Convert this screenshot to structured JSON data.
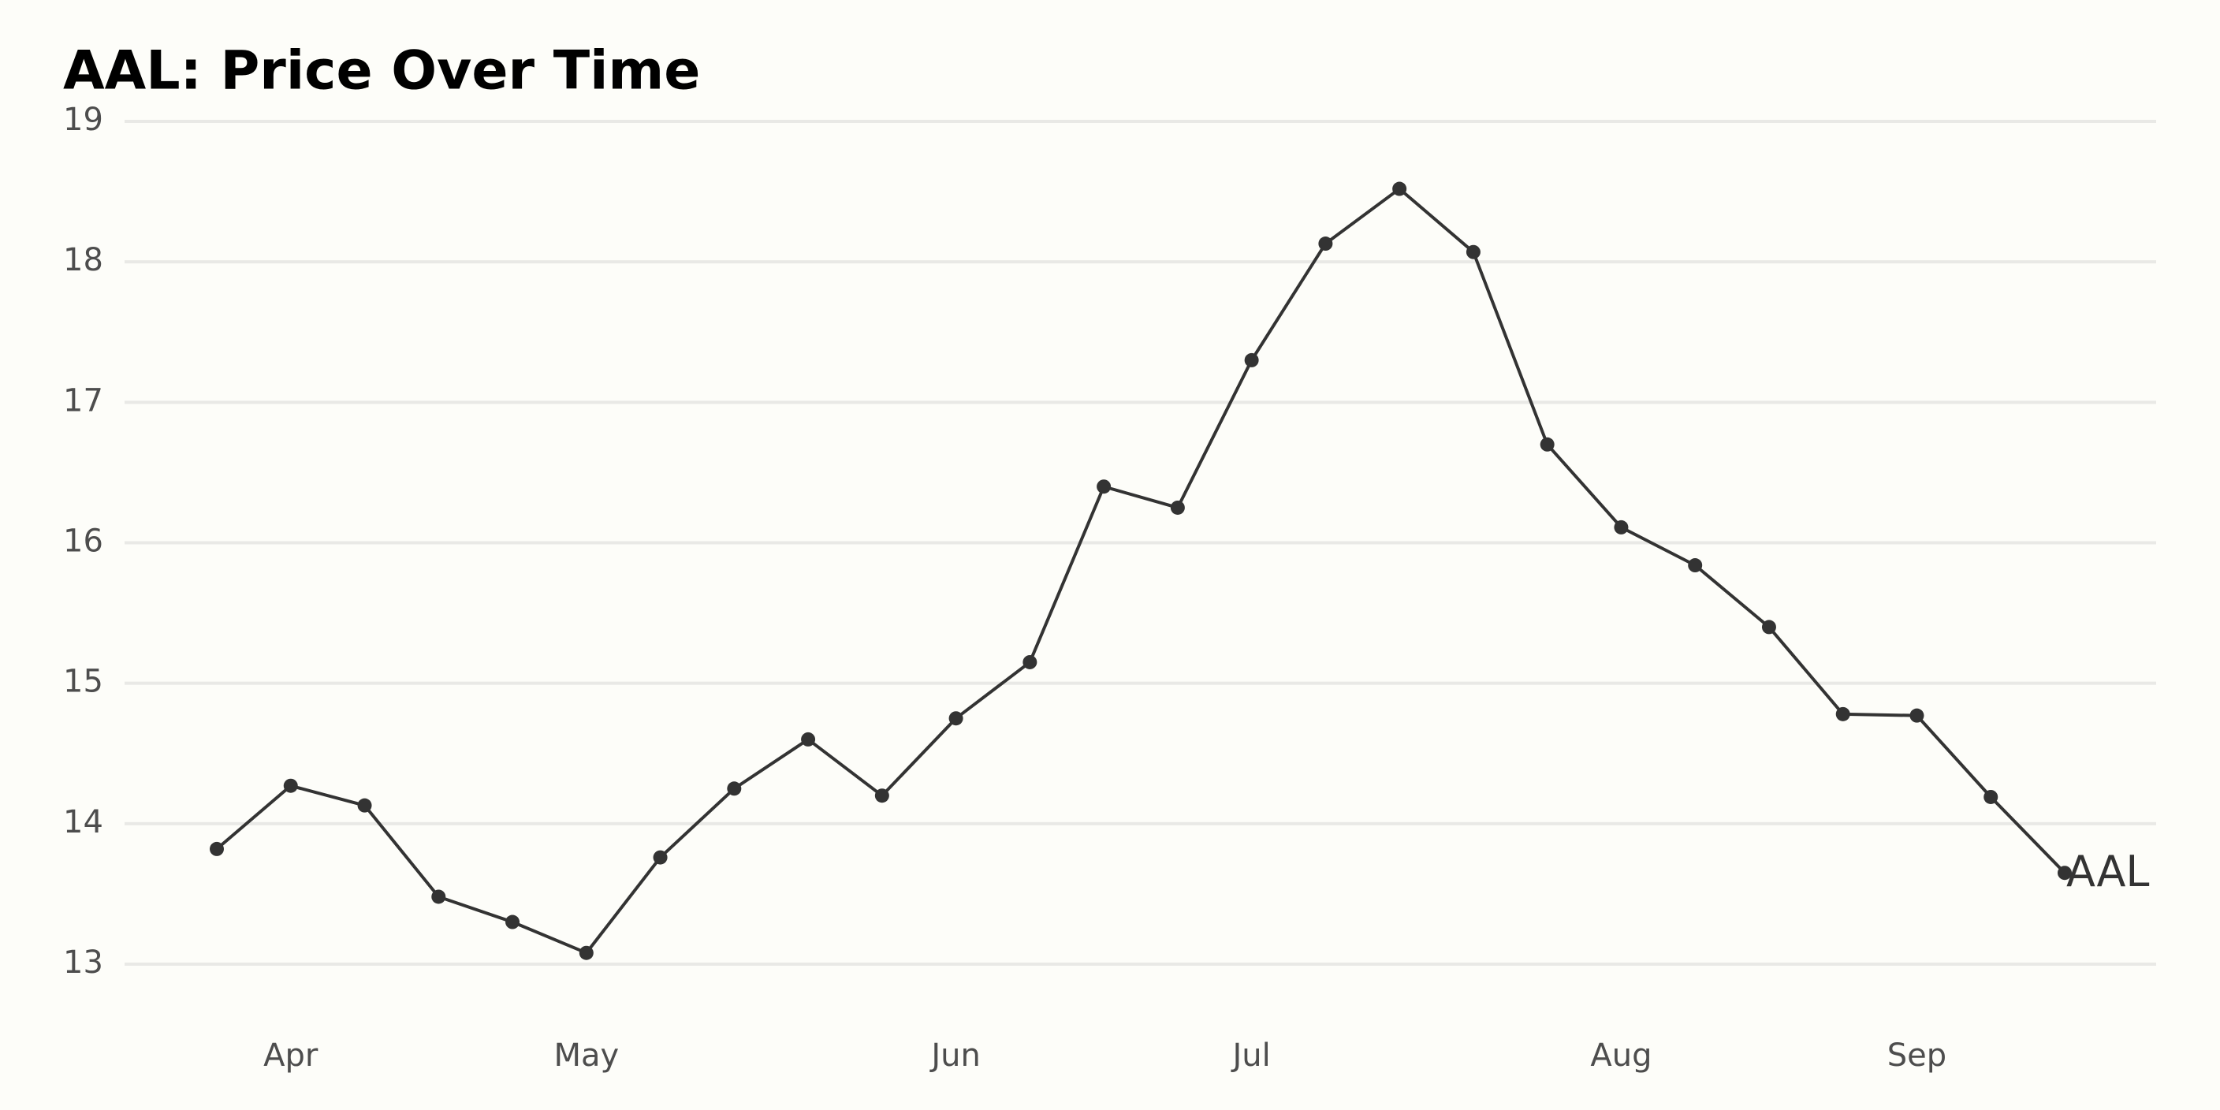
{
  "chart_data": {
    "type": "line",
    "title": "AAL: Price Over Time",
    "categories": [
      null,
      "Apr",
      null,
      null,
      null,
      "May",
      null,
      null,
      null,
      null,
      "Jun",
      null,
      null,
      null,
      "Jul",
      null,
      null,
      null,
      null,
      "Aug",
      null,
      null,
      null,
      "Sep",
      null,
      null
    ],
    "series": [
      {
        "name": "AAL",
        "color": "#333333",
        "values": [
          13.82,
          14.27,
          14.13,
          13.48,
          13.3,
          13.08,
          13.76,
          14.25,
          14.6,
          14.2,
          14.75,
          15.15,
          16.4,
          16.25,
          17.3,
          18.13,
          18.52,
          18.07,
          16.7,
          16.11,
          15.84,
          15.4,
          14.78,
          14.77,
          14.19,
          13.65
        ]
      }
    ],
    "ylim": [
      13,
      19
    ],
    "yticks": [
      13,
      14,
      15,
      16,
      17,
      18,
      19
    ],
    "grid": true
  }
}
